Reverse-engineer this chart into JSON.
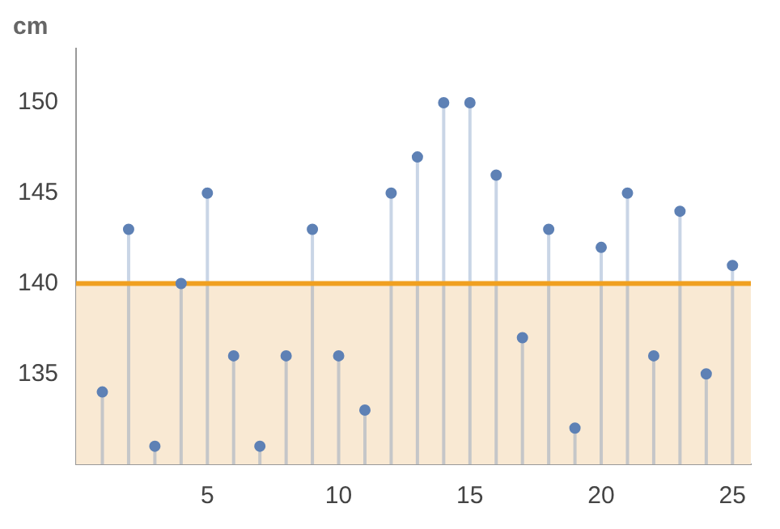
{
  "chart_data": {
    "type": "lollipop",
    "ylabel": "cm",
    "x": [
      1,
      2,
      3,
      4,
      5,
      6,
      7,
      8,
      9,
      10,
      11,
      12,
      13,
      14,
      15,
      16,
      17,
      18,
      19,
      20,
      21,
      22,
      23,
      24,
      25
    ],
    "values": [
      134,
      143,
      131,
      140,
      145,
      136,
      131,
      136,
      143,
      136,
      133,
      145,
      147,
      150,
      150,
      146,
      137,
      143,
      132,
      142,
      145,
      136,
      144,
      135,
      141
    ],
    "color": "#5e81b5",
    "marker": "circle",
    "xlim": [
      0,
      25.7
    ],
    "xticks": [
      5,
      10,
      15,
      20,
      25
    ],
    "ylim": [
      130,
      153
    ],
    "yticks": [
      135,
      140,
      145,
      150
    ],
    "ref_lines": [
      {
        "axis": "y",
        "value": 140,
        "color": "#f0a020"
      }
    ],
    "bands": [
      {
        "axis": "y",
        "from": 130,
        "to": 140,
        "color": "#f9e9d3"
      }
    ]
  }
}
